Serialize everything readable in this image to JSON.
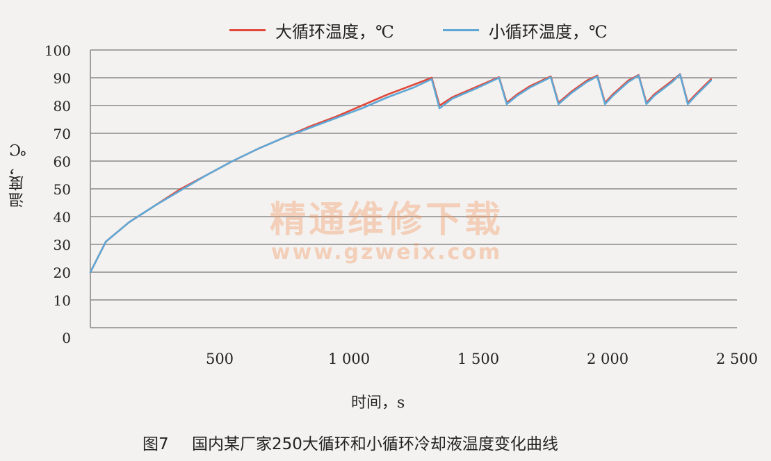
{
  "chart_data": {
    "type": "line",
    "xlabel": "时间，s",
    "ylabel": "温度，℃",
    "xlim": [
      0,
      2500
    ],
    "ylim": [
      0,
      100
    ],
    "x_ticks": [
      "500",
      "1 000",
      "1 500",
      "2 000",
      "2 500"
    ],
    "y_ticks": [
      "0",
      "10",
      "20",
      "30",
      "40",
      "50",
      "60",
      "70",
      "80",
      "90",
      "100"
    ],
    "grid": "horizontal",
    "legend_position": "top",
    "series": [
      {
        "name": "大循环温度，℃",
        "color": "#e04a3c",
        "points": [
          [
            0,
            20
          ],
          [
            60,
            31
          ],
          [
            150,
            38
          ],
          [
            250,
            44
          ],
          [
            350,
            50
          ],
          [
            450,
            55
          ],
          [
            550,
            60
          ],
          [
            650,
            64.5
          ],
          [
            750,
            68.5
          ],
          [
            850,
            72.5
          ],
          [
            950,
            76
          ],
          [
            1050,
            80
          ],
          [
            1150,
            84
          ],
          [
            1250,
            87.5
          ],
          [
            1320,
            90
          ],
          [
            1350,
            80
          ],
          [
            1400,
            83
          ],
          [
            1500,
            87
          ],
          [
            1580,
            90.2
          ],
          [
            1610,
            81
          ],
          [
            1650,
            84
          ],
          [
            1700,
            87
          ],
          [
            1780,
            90.5
          ],
          [
            1810,
            81
          ],
          [
            1860,
            85
          ],
          [
            1920,
            89
          ],
          [
            1960,
            90.8
          ],
          [
            1990,
            81
          ],
          [
            2020,
            84
          ],
          [
            2080,
            89
          ],
          [
            2120,
            91
          ],
          [
            2150,
            81
          ],
          [
            2180,
            84
          ],
          [
            2250,
            89
          ],
          [
            2280,
            91.3
          ],
          [
            2310,
            81
          ],
          [
            2340,
            84
          ],
          [
            2400,
            89.5
          ]
        ]
      },
      {
        "name": "小循环温度，℃",
        "color": "#5fa8d6",
        "points": [
          [
            0,
            20
          ],
          [
            60,
            31
          ],
          [
            150,
            38
          ],
          [
            250,
            44
          ],
          [
            350,
            49.5
          ],
          [
            450,
            55
          ],
          [
            550,
            60
          ],
          [
            650,
            64.5
          ],
          [
            750,
            68.5
          ],
          [
            850,
            72
          ],
          [
            950,
            75.5
          ],
          [
            1050,
            79
          ],
          [
            1150,
            83
          ],
          [
            1250,
            86.5
          ],
          [
            1320,
            89.5
          ],
          [
            1350,
            79
          ],
          [
            1400,
            82.5
          ],
          [
            1500,
            86.5
          ],
          [
            1580,
            90
          ],
          [
            1610,
            80.5
          ],
          [
            1650,
            83.5
          ],
          [
            1700,
            86.5
          ],
          [
            1780,
            90.2
          ],
          [
            1810,
            80.5
          ],
          [
            1860,
            84.5
          ],
          [
            1920,
            88.5
          ],
          [
            1960,
            90.5
          ],
          [
            1990,
            80.5
          ],
          [
            2020,
            83.5
          ],
          [
            2080,
            88.5
          ],
          [
            2120,
            90.8
          ],
          [
            2150,
            80.5
          ],
          [
            2180,
            83.5
          ],
          [
            2250,
            88.5
          ],
          [
            2280,
            91.2
          ],
          [
            2310,
            80.5
          ],
          [
            2340,
            83.5
          ],
          [
            2400,
            89
          ]
        ]
      }
    ]
  },
  "caption": {
    "number": "图7",
    "text": "国内某厂家250大循环和小循环冷却液温度变化曲线"
  },
  "watermark": {
    "line1": "精通维修下载",
    "line2": "www.gzweix.com"
  }
}
